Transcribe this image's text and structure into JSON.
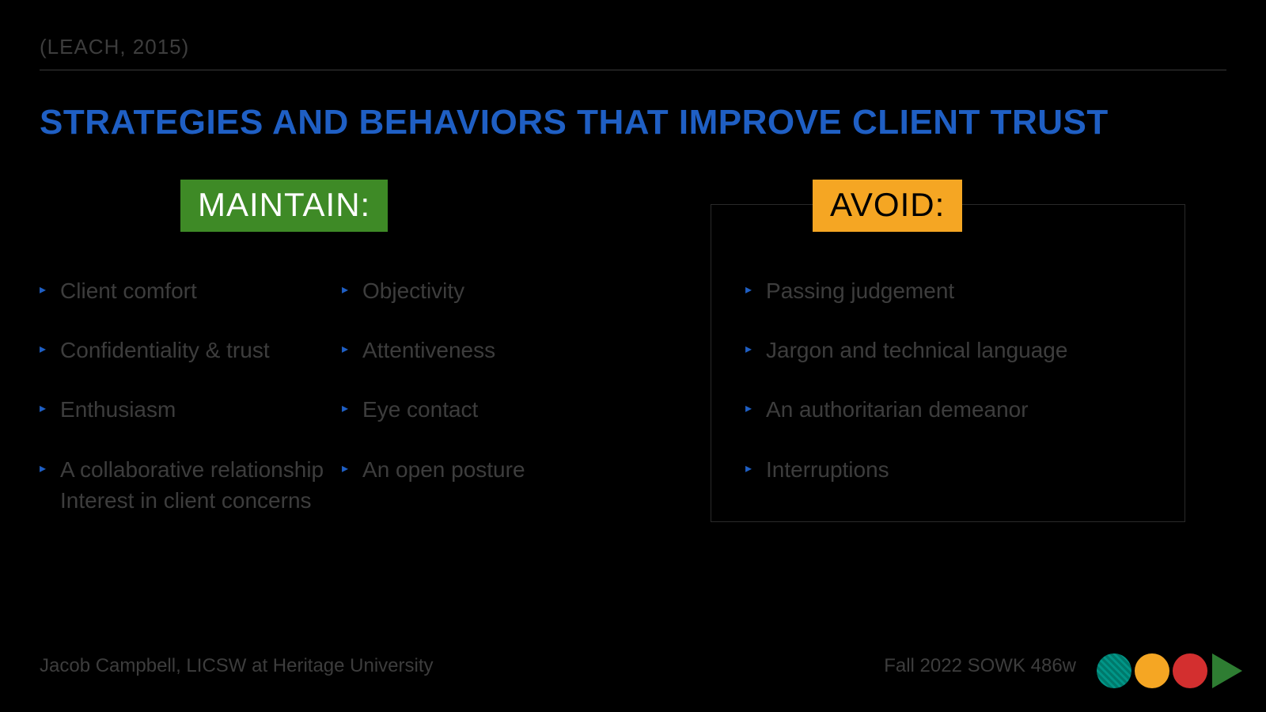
{
  "citation": "(LEACH, 2015)",
  "title": "STRATEGIES AND BEHAVIORS THAT IMPROVE CLIENT TRUST",
  "maintain_label": "MAINTAIN:",
  "avoid_label": "AVOID:",
  "maintain_col1": [
    "Client comfort",
    "Confidentiality & trust",
    "Enthusiasm",
    "A collaborative relationship Interest in client concerns"
  ],
  "maintain_col2": [
    "Objectivity",
    "Attentiveness",
    "Eye contact",
    "An open posture"
  ],
  "avoid_items": [
    "Passing judgement",
    "Jargon and technical language",
    "An authoritarian demeanor",
    "Interruptions"
  ],
  "footer_left": "Jacob Campbell, LICSW at Heritage University",
  "footer_right": "Fall 2022 SOWK 486w",
  "colors": {
    "background": "#000000",
    "title_color": "#1f5fc4",
    "maintain_bg": "#3e8a26",
    "avoid_bg": "#f5a623",
    "dim_text": "#3d3d3d",
    "bullet_marker": "#1f5fc4",
    "divider": "#3a3a3a",
    "box_border": "#2a2a2a",
    "logo_teal": "#009688",
    "logo_orange": "#f5a623",
    "logo_red": "#d32f2f",
    "logo_green": "#2e7d32"
  },
  "typography": {
    "citation_fontsize": 26,
    "title_fontsize": 44,
    "label_fontsize": 42,
    "body_fontsize": 28,
    "footer_fontsize": 24
  }
}
